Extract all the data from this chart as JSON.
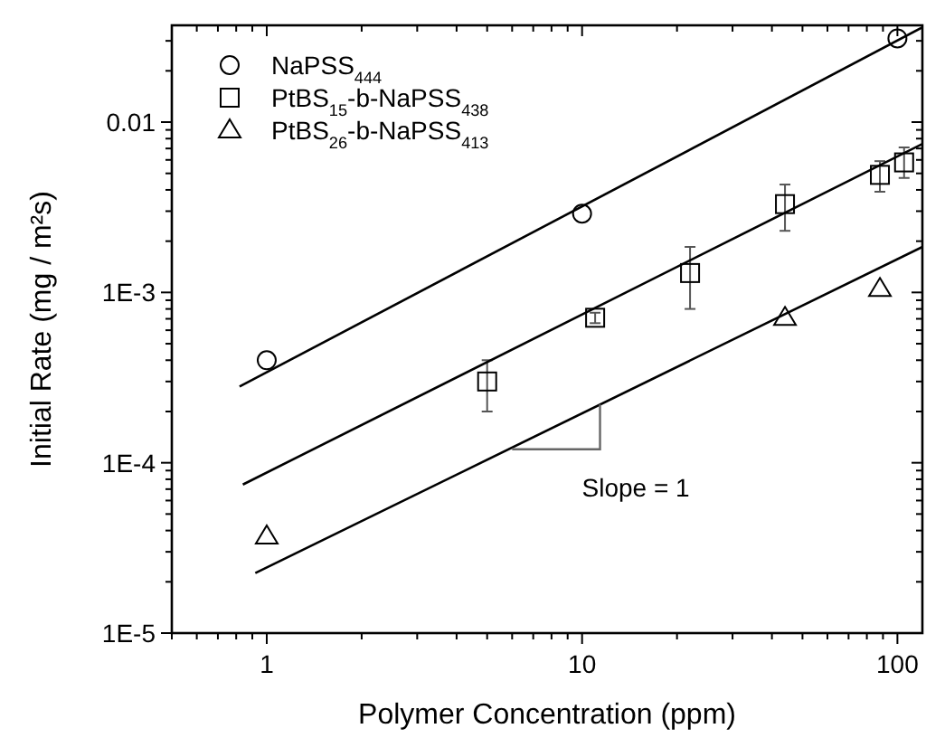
{
  "chart_data": {
    "type": "scatter",
    "xlabel": "Polymer Concentration (ppm)",
    "ylabel": "Initial Rate (mg / m²s)",
    "log": "xy",
    "legend": "top left",
    "grid": false,
    "xlim": [
      0.5,
      120
    ],
    "xticks": [
      {
        "value": 0.5,
        "label": null
      },
      {
        "value": 0.6,
        "label": null
      },
      {
        "value": 0.7,
        "label": null
      },
      {
        "value": 0.8,
        "label": null
      },
      {
        "value": 0.9,
        "label": null
      },
      1,
      {
        "value": 2,
        "label": null
      },
      {
        "value": 3,
        "label": null
      },
      {
        "value": 4,
        "label": null
      },
      {
        "value": 5,
        "label": null
      },
      {
        "value": 6,
        "label": null
      },
      {
        "value": 7,
        "label": null
      },
      {
        "value": 8,
        "label": null
      },
      {
        "value": 9,
        "label": null
      },
      10,
      {
        "value": 20,
        "label": null
      },
      {
        "value": 30,
        "label": null
      },
      {
        "value": 40,
        "label": null
      },
      {
        "value": 50,
        "label": null
      },
      {
        "value": 60,
        "label": null
      },
      {
        "value": 70,
        "label": null
      },
      {
        "value": 80,
        "label": null
      },
      {
        "value": 90,
        "label": null
      },
      100
    ],
    "ylim": [
      1e-05,
      0.037
    ],
    "yticks": [
      {
        "value": 1e-05,
        "label": "1E-5"
      },
      {
        "value": 2e-05,
        "label": null
      },
      {
        "value": 3e-05,
        "label": null
      },
      {
        "value": 4e-05,
        "label": null
      },
      {
        "value": 5e-05,
        "label": null
      },
      {
        "value": 6e-05,
        "label": null
      },
      {
        "value": 7e-05,
        "label": null
      },
      {
        "value": 8e-05,
        "label": null
      },
      {
        "value": 9e-05,
        "label": null
      },
      {
        "value": 0.0001,
        "label": "1E-4"
      },
      {
        "value": 0.0002,
        "label": null
      },
      {
        "value": 0.0003,
        "label": null
      },
      {
        "value": 0.0004,
        "label": null
      },
      {
        "value": 0.0005,
        "label": null
      },
      {
        "value": 0.0006,
        "label": null
      },
      {
        "value": 0.0007,
        "label": null
      },
      {
        "value": 0.0008,
        "label": null
      },
      {
        "value": 0.0009,
        "label": null
      },
      {
        "value": 0.001,
        "label": "1E-3"
      },
      {
        "value": 0.002,
        "label": null
      },
      {
        "value": 0.003,
        "label": null
      },
      {
        "value": 0.004,
        "label": null
      },
      {
        "value": 0.005,
        "label": null
      },
      {
        "value": 0.006,
        "label": null
      },
      {
        "value": 0.007,
        "label": null
      },
      {
        "value": 0.008,
        "label": null
      },
      {
        "value": 0.009,
        "label": null
      },
      0.01,
      {
        "value": 0.02,
        "label": null
      },
      {
        "value": 0.03,
        "label": null
      }
    ],
    "series": [
      {
        "name": "NaPSS$_{444}$",
        "marker": "circle",
        "color": "#000000",
        "x": [
          1,
          10,
          100
        ],
        "values": [
          0.0004,
          0.0029,
          0.031
        ]
      },
      {
        "name": "PtBS$_{15}$-b-NaPSS$_{438}$",
        "marker": "square",
        "color": "#000000",
        "x": [
          5,
          11,
          22,
          44,
          88,
          105
        ],
        "values": [
          0.0003,
          0.00071,
          0.0013,
          0.0033,
          0.0049,
          0.0058
        ],
        "errors": [
          0.0001,
          5e-05,
          [
            0.0008,
            0.00185
          ],
          0.001,
          0.001,
          [
            0.0047,
            0.0071
          ]
        ]
      },
      {
        "name": "PtBS$_{26}$-b-NaPSS$_{413}$",
        "marker": "triangle",
        "color": "#000000",
        "x": [
          1,
          44,
          88
        ],
        "values": [
          3.7e-05,
          0.00071,
          0.00105
        ]
      },
      {
        "type": "line",
        "marker": "none",
        "color": "#000000",
        "x": [
          0.82,
          120
        ],
        "values": [
          0.00028,
          0.036
        ]
      },
      {
        "type": "line",
        "marker": "none",
        "color": "#000000",
        "x": [
          0.84,
          120
        ],
        "values": [
          7.45e-05,
          0.00745
        ]
      },
      {
        "type": "line",
        "marker": "none",
        "color": "#000000",
        "x": [
          0.92,
          120
        ],
        "values": [
          2.25e-05,
          0.00185
        ]
      }
    ],
    "annotations": [
      "Slope = 1"
    ]
  }
}
